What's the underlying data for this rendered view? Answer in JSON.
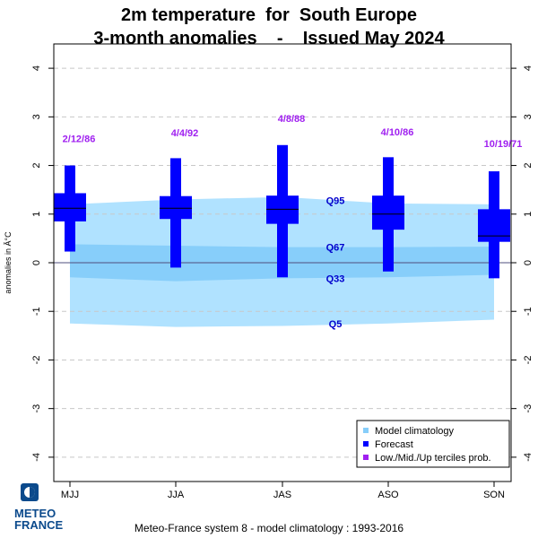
{
  "header": {
    "title_line1": "2m temperature  for  South Europe",
    "title_line2": "3-month anomalies    -    Issued May 2024"
  },
  "footer": {
    "text": "Meteo-France system 8  -  model climatology : 1993-2016"
  },
  "logo": {
    "line1": "METEO",
    "line2": "FRANCE"
  },
  "chart_data": {
    "type": "boxplot",
    "categories": [
      "MJJ",
      "JJA",
      "JAS",
      "ASO",
      "SON"
    ],
    "ylabel": "anomalies in Â°C",
    "ylim": [
      -4.5,
      4.5
    ],
    "yticks": [
      -4,
      -3,
      -2,
      -1,
      0,
      1,
      2,
      3,
      4
    ],
    "grid": true,
    "climatology": {
      "Q5": [
        -1.25,
        -1.32,
        -1.3,
        -1.25,
        -1.17
      ],
      "Q33": [
        -0.3,
        -0.38,
        -0.32,
        -0.3,
        -0.25
      ],
      "Q67": [
        0.38,
        0.35,
        0.32,
        0.32,
        0.33
      ],
      "Q95": [
        1.2,
        1.3,
        1.35,
        1.22,
        1.2
      ],
      "labels": [
        "Q95",
        "Q67",
        "Q33",
        "Q5"
      ],
      "label_values": [
        1.28,
        0.32,
        -0.32,
        -1.25
      ]
    },
    "forecast": [
      {
        "min": 0.23,
        "q1": 0.85,
        "median": 1.12,
        "q3": 1.43,
        "max": 2.0,
        "terciles": "2/12/86"
      },
      {
        "min": -0.1,
        "q1": 0.9,
        "median": 1.12,
        "q3": 1.37,
        "max": 2.15,
        "terciles": "4/4/92"
      },
      {
        "min": -0.3,
        "q1": 0.8,
        "median": 1.1,
        "q3": 1.38,
        "max": 2.42,
        "terciles": "4/8/88"
      },
      {
        "min": -0.18,
        "q1": 0.68,
        "median": 1.0,
        "q3": 1.38,
        "max": 2.17,
        "terciles": "4/10/86"
      },
      {
        "min": -0.32,
        "q1": 0.43,
        "median": 0.55,
        "q3": 1.1,
        "max": 1.88,
        "terciles": "10/19/71"
      }
    ],
    "tercile_label_values": [
      2.48,
      2.6,
      2.9,
      2.62,
      2.38
    ],
    "legend": {
      "position": "bottom-right",
      "items": [
        {
          "label": "Model climatology",
          "color": "#87cefa"
        },
        {
          "label": "Forecast",
          "color": "#0000ff"
        },
        {
          "label": "Low./Mid./Up terciles prob.",
          "color": "#a020f0"
        }
      ]
    },
    "colors": {
      "outer_band": "#b0e2ff",
      "inner_band": "#87cefa",
      "forecast": "#0000ff",
      "tercile_text": "#a020f0",
      "quantile_text": "#0000cd",
      "zero_line": "#4f4f7f",
      "grid": "#c8c8c8"
    }
  }
}
